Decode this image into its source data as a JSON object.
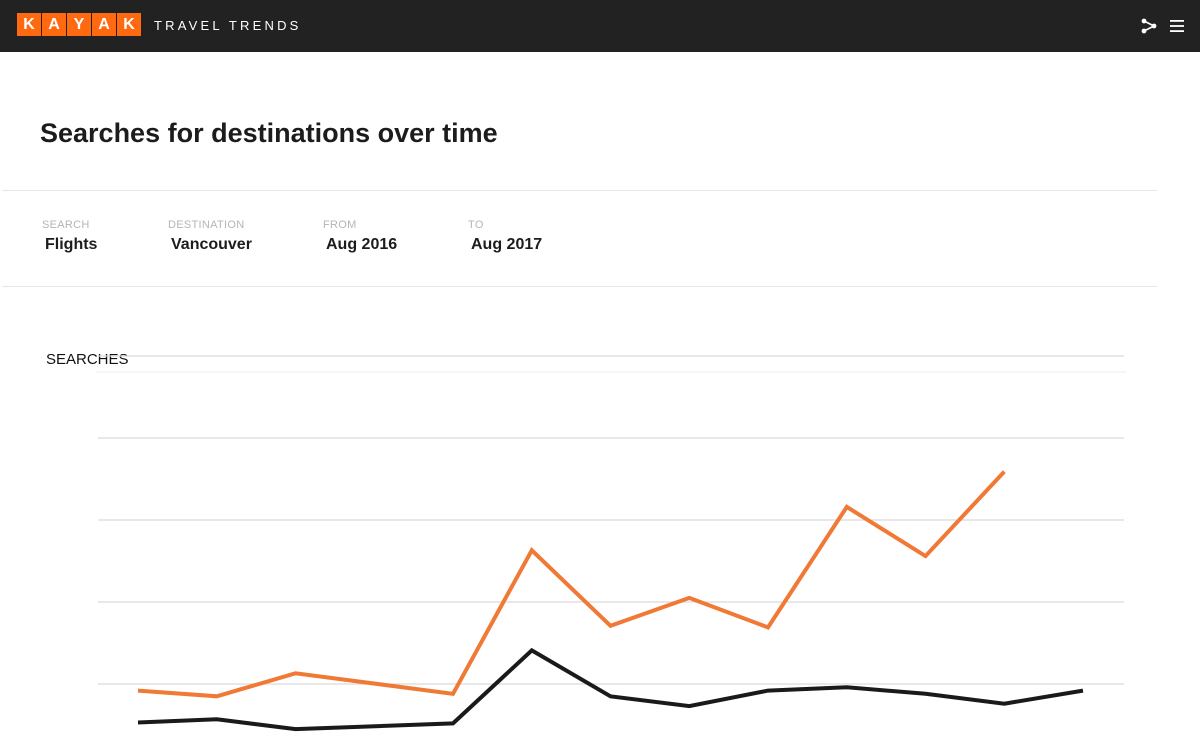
{
  "header": {
    "logo_letters": [
      "K",
      "A",
      "Y",
      "A",
      "K"
    ],
    "subtitle": "TRAVEL TRENDS",
    "icons": [
      "share-icon",
      "menu-icon"
    ]
  },
  "page": {
    "title": "Searches for destinations over time"
  },
  "filters": {
    "search": {
      "label": "SEARCH",
      "value": "Flights"
    },
    "destination": {
      "label": "DESTINATION",
      "value": "Vancouver"
    },
    "from": {
      "label": "FROM",
      "value": "Aug 2016"
    },
    "to": {
      "label": "TO",
      "value": "Aug 2017"
    }
  },
  "colors": {
    "brand_orange": "#ff690f",
    "line_orange": "#f07a35",
    "line_dark": "#1a1a1a",
    "topbar": "#222222"
  },
  "chart_data": {
    "type": "line",
    "ylabel": "SEARCHES",
    "x": [
      0,
      1,
      2,
      3,
      4,
      5,
      6,
      7,
      8,
      9,
      10,
      11,
      12
    ],
    "ylim": [
      0,
      5
    ],
    "gridlines": [
      1,
      2,
      3,
      4,
      5
    ],
    "grid": true,
    "series": [
      {
        "values": [
          0.92,
          0.85,
          1.13,
          null,
          0.88,
          2.63,
          1.71,
          2.05,
          1.69,
          3.16,
          2.56,
          3.59,
          null
        ]
      },
      {
        "values": [
          0.53,
          0.57,
          0.45,
          null,
          0.52,
          1.41,
          0.85,
          0.73,
          0.92,
          0.96,
          0.88,
          0.76,
          0.92
        ]
      }
    ]
  }
}
